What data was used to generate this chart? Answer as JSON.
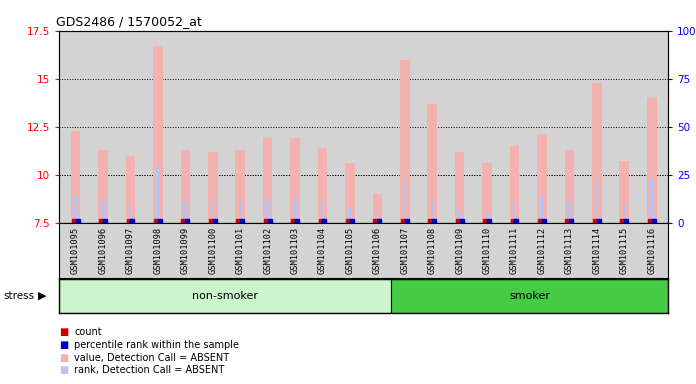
{
  "title": "GDS2486 / 1570052_at",
  "samples": [
    "GSM101095",
    "GSM101096",
    "GSM101097",
    "GSM101098",
    "GSM101099",
    "GSM101100",
    "GSM101101",
    "GSM101102",
    "GSM101103",
    "GSM101104",
    "GSM101105",
    "GSM101106",
    "GSM101107",
    "GSM101108",
    "GSM101109",
    "GSM101110",
    "GSM101111",
    "GSM101112",
    "GSM101113",
    "GSM101114",
    "GSM101115",
    "GSM101116"
  ],
  "values": [
    12.3,
    11.3,
    11.0,
    16.7,
    11.3,
    11.2,
    11.3,
    11.9,
    11.9,
    11.4,
    10.6,
    9.0,
    16.0,
    13.7,
    11.2,
    10.6,
    11.5,
    12.1,
    11.3,
    14.8,
    10.7,
    14.0
  ],
  "ranks": [
    8.9,
    8.7,
    8.5,
    10.4,
    8.6,
    8.7,
    8.7,
    8.8,
    8.8,
    8.7,
    8.3,
    7.8,
    9.8,
    8.7,
    8.1,
    8.0,
    8.6,
    8.9,
    8.6,
    9.8,
    8.5,
    9.8
  ],
  "non_smoker_count": 12,
  "smoker_count": 10,
  "ylim_left": [
    7.5,
    17.5
  ],
  "ylim_right": [
    0,
    100
  ],
  "yticks_left": [
    7.5,
    10.0,
    12.5,
    15.0,
    17.5
  ],
  "yticks_right": [
    0,
    25,
    50,
    75,
    100
  ],
  "grid_vals": [
    10.0,
    12.5,
    15.0
  ],
  "bar_color_value": "#f5b0b0",
  "bar_color_rank": "#b8c4f0",
  "dot_color_value": "#cc0000",
  "dot_color_rank": "#0000cc",
  "non_smoker_color": "#ccf5cc",
  "smoker_color": "#44cc44",
  "axis_bg_color": "#d3d3d3",
  "stress_label": "stress",
  "non_smoker_label": "non-smoker",
  "smoker_label": "smoker"
}
